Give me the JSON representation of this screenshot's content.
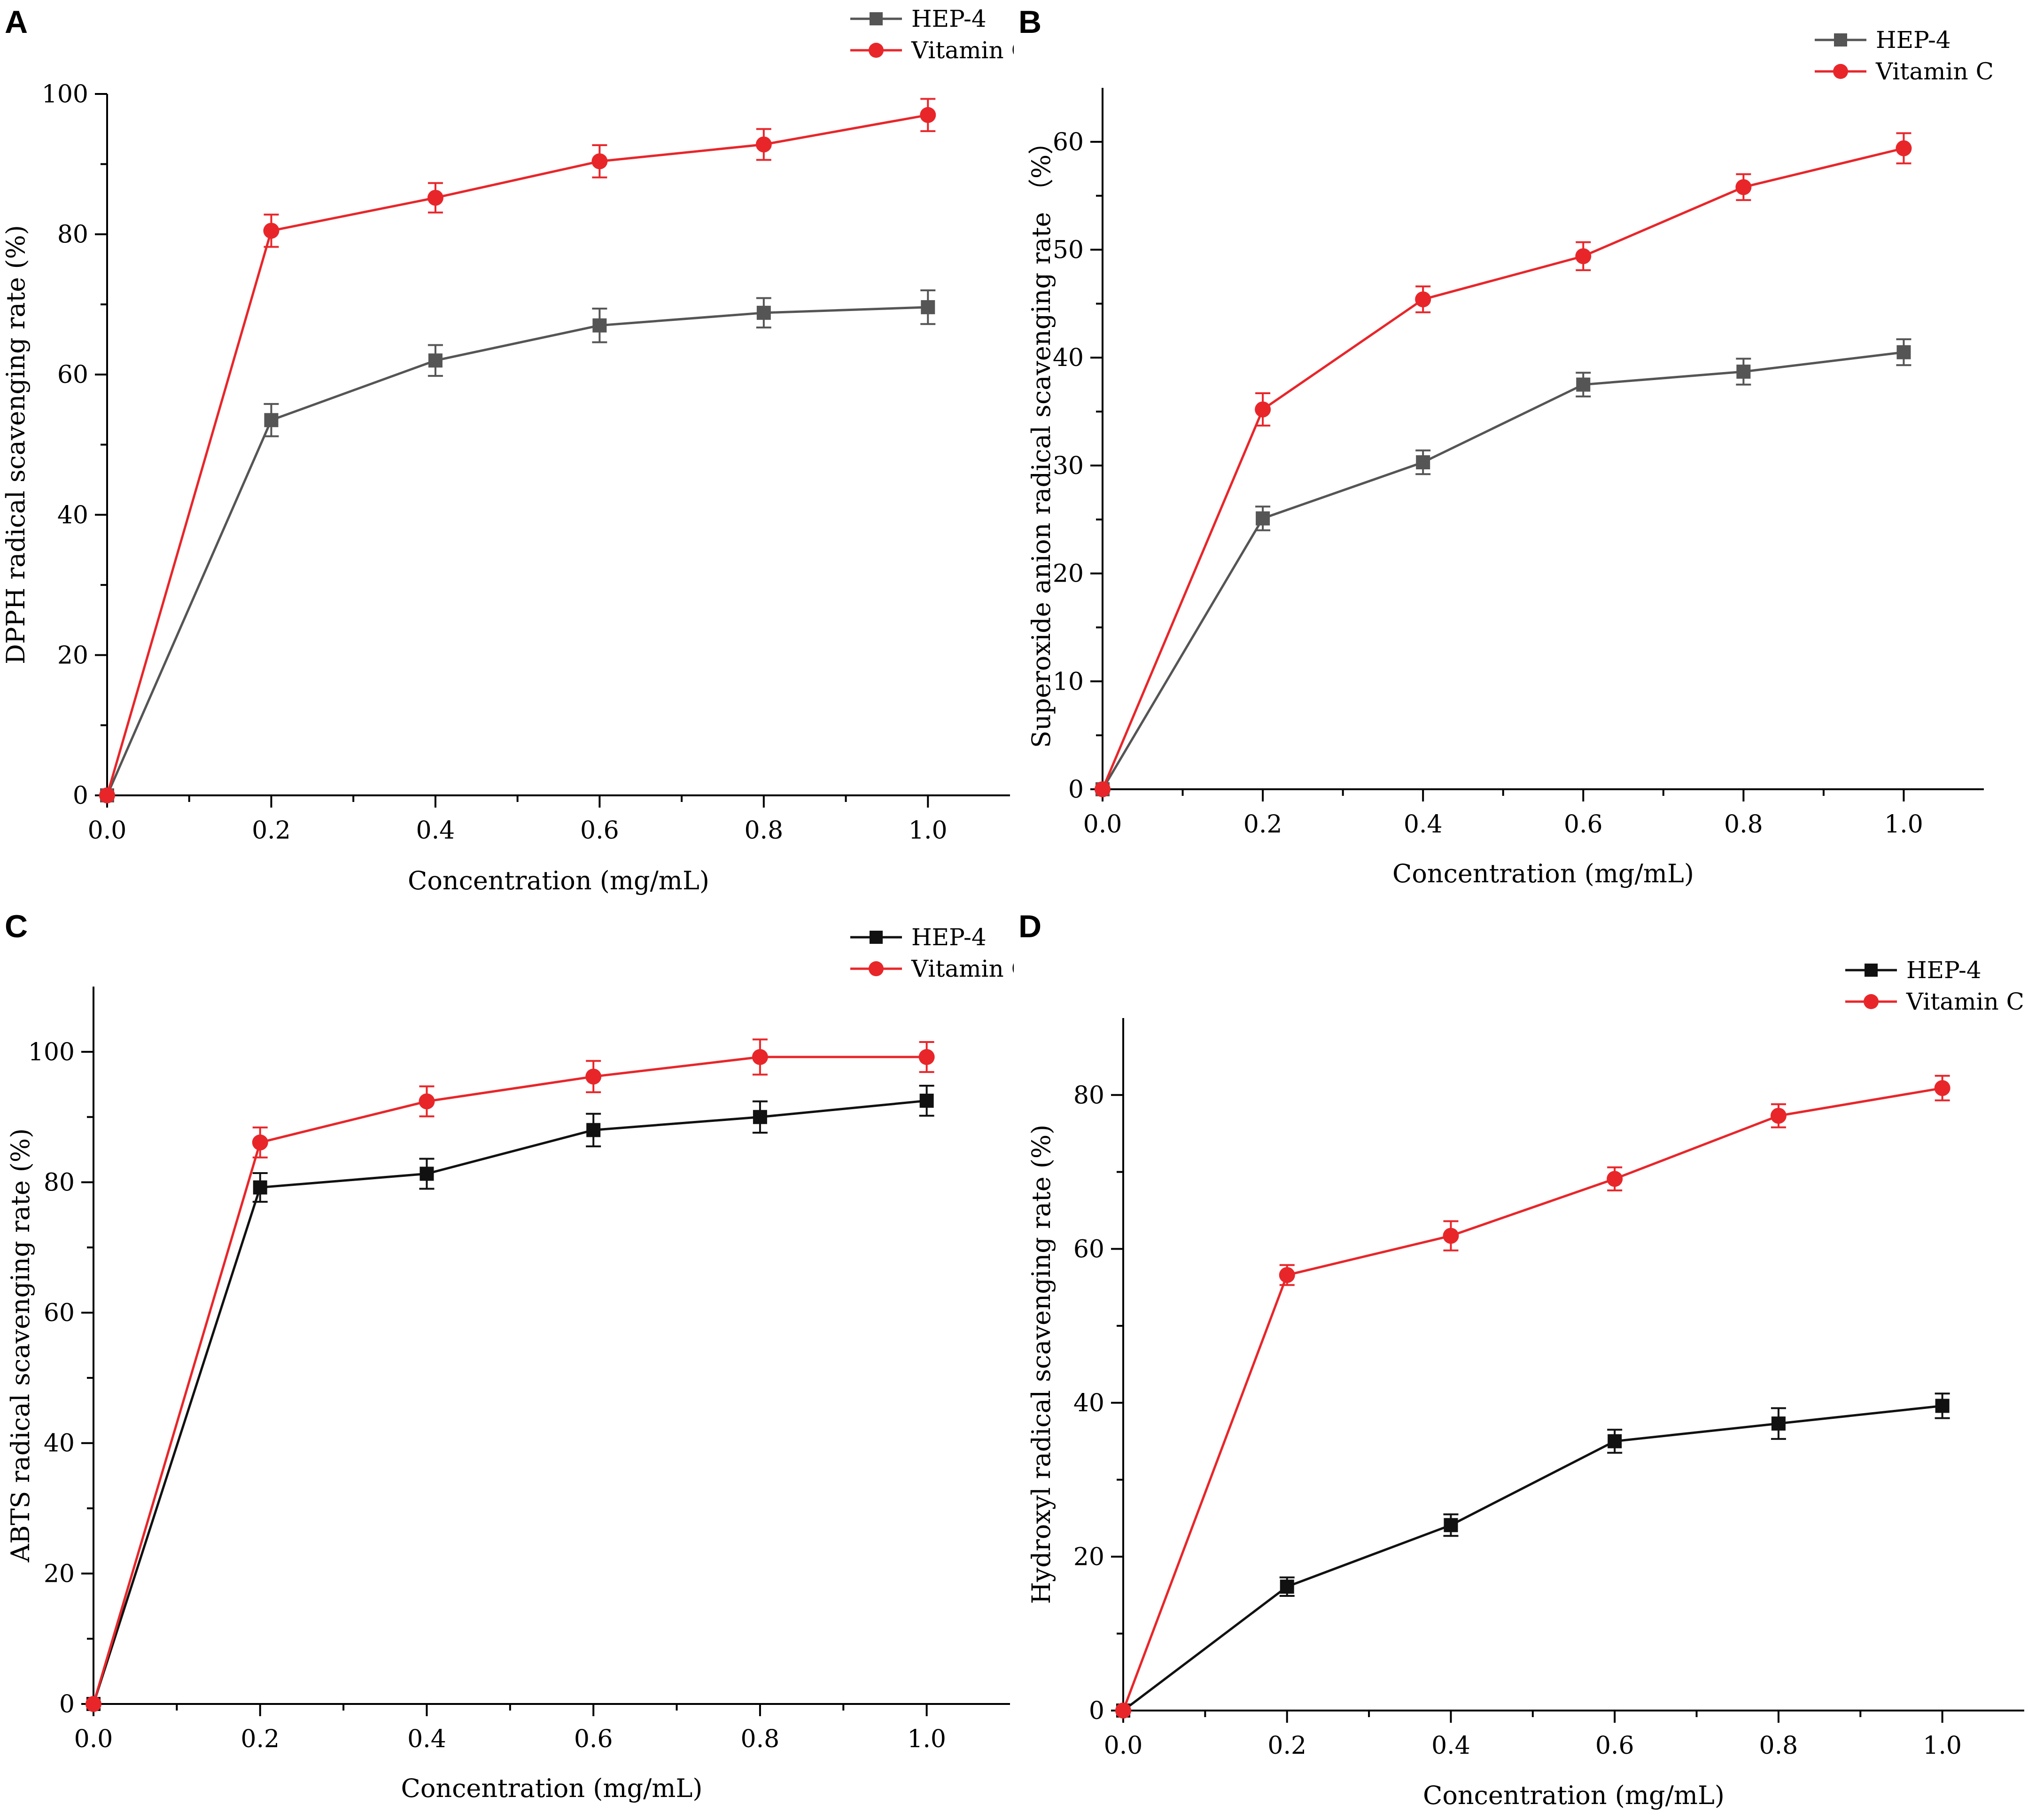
{
  "chart_data": [
    {
      "type": "line",
      "panel_label": "A",
      "xlabel": "Concentration (mg/mL)",
      "ylabel": "DPPH radical scavenging rate (%)",
      "xlim": [
        0,
        1.1
      ],
      "ylim": [
        0,
        100
      ],
      "xticks": [
        0.0,
        0.2,
        0.4,
        0.6,
        0.8,
        1.0
      ],
      "xtick_labels": [
        "0.0",
        "0.2",
        "0.4",
        "0.6",
        "0.8",
        "1.0"
      ],
      "yticks": [
        0,
        20,
        40,
        60,
        80,
        100
      ],
      "ytick_labels": [
        "0",
        "20",
        "40",
        "60",
        "80",
        "100"
      ],
      "legend_position": "top-right",
      "x": [
        0.0,
        0.2,
        0.4,
        0.6,
        0.8,
        1.0
      ],
      "series": [
        {
          "name": "HEP-4",
          "marker": "square",
          "color": "#555555",
          "values": [
            0,
            53.5,
            62,
            67,
            68.8,
            69.6
          ],
          "errors": [
            0,
            2.3,
            2.2,
            2.4,
            2.1,
            2.4
          ]
        },
        {
          "name": "Vitamin C",
          "marker": "circle",
          "color": "#e8262a",
          "values": [
            0,
            80.5,
            85.2,
            90.4,
            92.8,
            97
          ],
          "errors": [
            0,
            2.3,
            2.1,
            2.3,
            2.2,
            2.3
          ]
        }
      ]
    },
    {
      "type": "line",
      "panel_label": "B",
      "xlabel": "Concentration (mg/mL)",
      "ylabel": "Superoxide anion radical scavenging rate （%）",
      "xlim": [
        0,
        1.1
      ],
      "ylim": [
        0,
        65
      ],
      "xticks": [
        0.0,
        0.2,
        0.4,
        0.6,
        0.8,
        1.0
      ],
      "xtick_labels": [
        "0.0",
        "0.2",
        "0.4",
        "0.6",
        "0.8",
        "1.0"
      ],
      "yticks": [
        0,
        10,
        20,
        30,
        40,
        50,
        60
      ],
      "ytick_labels": [
        "0",
        "10",
        "20",
        "30",
        "40",
        "50",
        "60"
      ],
      "legend_position": "top-right",
      "x": [
        0.0,
        0.2,
        0.4,
        0.6,
        0.8,
        1.0
      ],
      "series": [
        {
          "name": "HEP-4",
          "marker": "square",
          "color": "#555555",
          "values": [
            0,
            25.1,
            30.3,
            37.5,
            38.7,
            40.5
          ],
          "errors": [
            0,
            1.1,
            1.1,
            1.1,
            1.2,
            1.2
          ]
        },
        {
          "name": "Vitamin C",
          "marker": "circle",
          "color": "#e8262a",
          "values": [
            0,
            35.2,
            45.4,
            49.4,
            55.8,
            59.4
          ],
          "errors": [
            0,
            1.5,
            1.2,
            1.3,
            1.2,
            1.4
          ]
        }
      ]
    },
    {
      "type": "line",
      "panel_label": "C",
      "xlabel": "Concentration (mg/mL)",
      "ylabel": "ABTS radical scavenging rate (%)",
      "xlim": [
        0,
        1.1
      ],
      "ylim": [
        0,
        110
      ],
      "xticks": [
        0.0,
        0.2,
        0.4,
        0.6,
        0.8,
        1.0
      ],
      "xtick_labels": [
        "0.0",
        "0.2",
        "0.4",
        "0.6",
        "0.8",
        "1.0"
      ],
      "yticks": [
        0,
        20,
        40,
        60,
        80,
        100
      ],
      "ytick_labels": [
        "0",
        "20",
        "40",
        "60",
        "80",
        "100"
      ],
      "legend_position": "top-right",
      "x": [
        0.0,
        0.2,
        0.4,
        0.6,
        0.8,
        1.0
      ],
      "series": [
        {
          "name": "HEP-4",
          "marker": "square",
          "color": "#111111",
          "values": [
            0,
            79.2,
            81.3,
            88,
            90,
            92.5
          ],
          "errors": [
            0,
            2.2,
            2.3,
            2.5,
            2.4,
            2.3
          ]
        },
        {
          "name": "Vitamin C",
          "marker": "circle",
          "color": "#e8262a",
          "values": [
            0,
            86.1,
            92.4,
            96.2,
            99.2,
            99.2
          ],
          "errors": [
            0,
            2.3,
            2.3,
            2.4,
            2.7,
            2.3
          ]
        }
      ]
    },
    {
      "type": "line",
      "panel_label": "D",
      "xlabel": "Concentration (mg/mL)",
      "ylabel": "Hydroxyl radical scavenging rate (%)",
      "xlim": [
        0,
        1.1
      ],
      "ylim": [
        0,
        90
      ],
      "xticks": [
        0.0,
        0.2,
        0.4,
        0.6,
        0.8,
        1.0
      ],
      "xtick_labels": [
        "0.0",
        "0.2",
        "0.4",
        "0.6",
        "0.8",
        "1.0"
      ],
      "yticks": [
        0,
        20,
        40,
        60,
        80
      ],
      "ytick_labels": [
        "0",
        "20",
        "40",
        "60",
        "80"
      ],
      "legend_position": "top-right",
      "x": [
        0.0,
        0.2,
        0.4,
        0.6,
        0.8,
        1.0
      ],
      "series": [
        {
          "name": "HEP-4",
          "marker": "square",
          "color": "#111111",
          "values": [
            0,
            16.1,
            24.1,
            35,
            37.3,
            39.6
          ],
          "errors": [
            0,
            1.2,
            1.4,
            1.5,
            2,
            1.6
          ]
        },
        {
          "name": "Vitamin C",
          "marker": "circle",
          "color": "#e8262a",
          "values": [
            0,
            56.6,
            61.7,
            69.1,
            77.3,
            80.9
          ],
          "errors": [
            0,
            1.3,
            1.9,
            1.5,
            1.5,
            1.6
          ]
        }
      ]
    }
  ]
}
